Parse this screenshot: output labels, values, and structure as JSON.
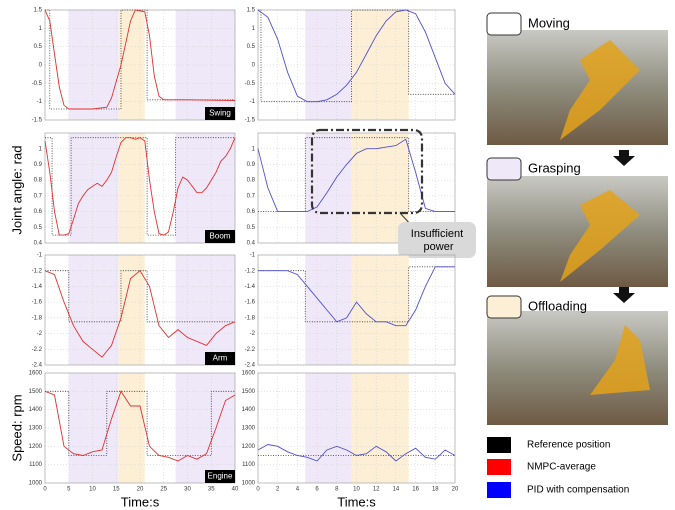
{
  "chart_data": [
    {
      "type": "line",
      "label": "Swing",
      "xlim": [
        0,
        40
      ],
      "ylim": [
        -1.5,
        1.5
      ],
      "xticks": [
        0,
        5,
        10,
        15,
        20,
        25,
        30,
        35,
        40
      ],
      "yticks": [
        -1.5,
        -1,
        -0.5,
        0,
        0.5,
        1,
        1.5
      ],
      "spans": [
        {
          "x0": 5,
          "x1": 15.5,
          "color": "#efe8f8"
        },
        {
          "x0": 15.5,
          "x1": 21,
          "color": "#fdefd6"
        },
        {
          "x0": 27.5,
          "x1": 40,
          "color": "#efe8f8"
        }
      ],
      "series": [
        {
          "color": "#333333",
          "dash": true,
          "x": [
            0,
            1,
            1,
            16,
            16,
            21.5,
            21.5,
            40
          ],
          "values": [
            1.5,
            1.5,
            -1.2,
            -1.2,
            1.5,
            1.5,
            -0.95,
            -0.95
          ]
        },
        {
          "color": "#e03030",
          "x": [
            0,
            1,
            2,
            3,
            4,
            5,
            10,
            13,
            14,
            16,
            18,
            19,
            21,
            22,
            23,
            24,
            25,
            30,
            40
          ],
          "values": [
            1.5,
            1.2,
            0.3,
            -0.6,
            -1.1,
            -1.2,
            -1.2,
            -1.15,
            -0.9,
            0,
            1.2,
            1.5,
            1.45,
            0.8,
            -0.3,
            -0.85,
            -0.95,
            -0.95,
            -0.97
          ]
        }
      ]
    },
    {
      "type": "line",
      "xlim": [
        0,
        20
      ],
      "ylim": [
        -1.5,
        1.5
      ],
      "xticks": [
        0,
        2,
        4,
        6,
        8,
        10,
        12,
        14,
        16,
        18,
        20
      ],
      "yticks": [
        -1.5,
        -1,
        -0.5,
        0,
        0.5,
        1,
        1.5
      ],
      "spans": [
        {
          "x0": 4.8,
          "x1": 9.5,
          "color": "#efe8f8"
        },
        {
          "x0": 9.5,
          "x1": 15.3,
          "color": "#fdefd6"
        }
      ],
      "series": [
        {
          "color": "#333333",
          "dash": true,
          "x": [
            0,
            0.3,
            0.3,
            9.5,
            9.5,
            15.3,
            15.3,
            20
          ],
          "values": [
            1.5,
            1.5,
            -1,
            -1,
            1.5,
            1.5,
            -0.8,
            -0.8
          ]
        },
        {
          "color": "#5050d0",
          "x": [
            0,
            1,
            2,
            3,
            4,
            5,
            6,
            7,
            8,
            9,
            10,
            11,
            12,
            13,
            14,
            15,
            16,
            17,
            18,
            19,
            20
          ],
          "values": [
            1.5,
            1.3,
            0.7,
            -0.2,
            -0.85,
            -1,
            -1,
            -0.95,
            -0.8,
            -0.55,
            -0.2,
            0.3,
            0.8,
            1.2,
            1.45,
            1.5,
            1.4,
            0.9,
            0.2,
            -0.5,
            -0.8
          ]
        }
      ]
    },
    {
      "type": "line",
      "label": "Boom",
      "xlim": [
        0,
        40
      ],
      "ylim": [
        0.4,
        1.1
      ],
      "xticks": [
        0,
        5,
        10,
        15,
        20,
        25,
        30,
        35,
        40
      ],
      "yticks": [
        0.4,
        0.5,
        0.6,
        0.7,
        0.8,
        0.9,
        1
      ],
      "spans": [
        {
          "x0": 5,
          "x1": 15.5,
          "color": "#efe8f8"
        },
        {
          "x0": 15.5,
          "x1": 21,
          "color": "#fdefd6"
        },
        {
          "x0": 27.5,
          "x1": 40,
          "color": "#efe8f8"
        }
      ],
      "series": [
        {
          "color": "#333333",
          "dash": true,
          "x": [
            0,
            1.5,
            1.5,
            5.5,
            5.5,
            21.5,
            21.5,
            27.5,
            27.5,
            40
          ],
          "values": [
            1.07,
            1.07,
            0.45,
            0.45,
            1.07,
            1.07,
            0.45,
            0.45,
            1.07,
            1.07
          ]
        },
        {
          "color": "#e03030",
          "x": [
            0,
            1,
            2,
            3,
            4,
            5,
            6,
            7,
            8,
            9,
            10,
            11,
            12,
            13,
            14,
            15,
            16,
            17,
            18,
            19,
            20,
            21,
            22,
            23,
            24,
            25,
            26,
            27,
            28,
            29,
            30,
            31,
            32,
            33,
            34,
            35,
            36,
            37,
            38,
            39,
            40
          ],
          "values": [
            1.05,
            0.85,
            0.6,
            0.45,
            0.45,
            0.46,
            0.55,
            0.65,
            0.7,
            0.74,
            0.76,
            0.78,
            0.76,
            0.8,
            0.85,
            0.95,
            1.04,
            1.07,
            1.07,
            1.06,
            1.07,
            1.05,
            0.8,
            0.6,
            0.46,
            0.45,
            0.47,
            0.6,
            0.75,
            0.82,
            0.8,
            0.76,
            0.72,
            0.72,
            0.75,
            0.8,
            0.85,
            0.92,
            0.95,
            1.0,
            1.07
          ]
        }
      ]
    },
    {
      "type": "line",
      "annotation": "Insufficient power",
      "xlim": [
        0,
        20
      ],
      "ylim": [
        0.4,
        1.1
      ],
      "xticks": [
        0,
        2,
        4,
        6,
        8,
        10,
        12,
        14,
        16,
        18,
        20
      ],
      "yticks": [
        0.4,
        0.5,
        0.6,
        0.7,
        0.8,
        0.9,
        1
      ],
      "spans": [
        {
          "x0": 4.8,
          "x1": 9.5,
          "color": "#efe8f8"
        },
        {
          "x0": 9.5,
          "x1": 15.3,
          "color": "#fdefd6"
        }
      ],
      "series": [
        {
          "color": "#333333",
          "dash": true,
          "x": [
            0,
            4.8,
            4.8,
            15.3,
            15.3,
            20
          ],
          "values": [
            0.6,
            0.6,
            1.07,
            1.07,
            0.6,
            0.6
          ]
        },
        {
          "color": "#5050d0",
          "x": [
            0,
            1,
            2,
            3,
            4,
            5,
            6,
            7,
            8,
            9,
            10,
            11,
            12,
            13,
            14,
            15,
            16,
            17,
            18,
            19,
            20
          ],
          "values": [
            1.0,
            0.75,
            0.6,
            0.6,
            0.6,
            0.6,
            0.63,
            0.72,
            0.82,
            0.9,
            0.97,
            1.0,
            1.0,
            1.01,
            1.02,
            1.06,
            0.85,
            0.62,
            0.6,
            0.6,
            0.6
          ]
        }
      ]
    },
    {
      "type": "line",
      "label": "Arm",
      "xlim": [
        0,
        40
      ],
      "ylim": [
        -2.4,
        -1
      ],
      "xticks": [
        0,
        5,
        10,
        15,
        20,
        25,
        30,
        35,
        40
      ],
      "yticks": [
        -2.4,
        -2.2,
        -2,
        -1.8,
        -1.6,
        -1.4,
        -1.2,
        -1
      ],
      "spans": [
        {
          "x0": 5,
          "x1": 15.5,
          "color": "#efe8f8"
        },
        {
          "x0": 15.5,
          "x1": 21,
          "color": "#fdefd6"
        },
        {
          "x0": 27.5,
          "x1": 40,
          "color": "#efe8f8"
        }
      ],
      "series": [
        {
          "color": "#333333",
          "dash": true,
          "x": [
            0,
            5,
            5,
            16,
            16,
            21.5,
            21.5,
            40
          ],
          "values": [
            -1.2,
            -1.2,
            -1.85,
            -1.85,
            -1.2,
            -1.2,
            -1.85,
            -1.85
          ]
        },
        {
          "color": "#e03030",
          "x": [
            0,
            2,
            4,
            6,
            8,
            10,
            12,
            14,
            16,
            18,
            20,
            22,
            24,
            26,
            28,
            30,
            32,
            34,
            36,
            38,
            40
          ],
          "values": [
            -1.2,
            -1.25,
            -1.6,
            -1.9,
            -2.1,
            -2.2,
            -2.3,
            -2.15,
            -1.8,
            -1.3,
            -1.2,
            -1.4,
            -1.9,
            -2.05,
            -1.95,
            -2.05,
            -2.1,
            -2.15,
            -2.0,
            -1.9,
            -1.85
          ]
        }
      ]
    },
    {
      "type": "line",
      "xlim": [
        0,
        20
      ],
      "ylim": [
        -2.4,
        -1
      ],
      "xticks": [
        0,
        2,
        4,
        6,
        8,
        10,
        12,
        14,
        16,
        18,
        20
      ],
      "yticks": [
        -2.4,
        -2.2,
        -2,
        -1.8,
        -1.6,
        -1.4,
        -1.2,
        -1
      ],
      "spans": [
        {
          "x0": 4.8,
          "x1": 9.5,
          "color": "#efe8f8"
        },
        {
          "x0": 9.5,
          "x1": 15.3,
          "color": "#fdefd6"
        }
      ],
      "series": [
        {
          "color": "#333333",
          "dash": true,
          "x": [
            0,
            4.8,
            4.8,
            15.3,
            15.3,
            20
          ],
          "values": [
            -1.2,
            -1.2,
            -1.85,
            -1.85,
            -1.15,
            -1.15
          ]
        },
        {
          "color": "#5050d0",
          "x": [
            0,
            1,
            2,
            3,
            4,
            5,
            6,
            7,
            8,
            9,
            10,
            11,
            12,
            13,
            14,
            15,
            16,
            17,
            18,
            19,
            20
          ],
          "values": [
            -1.2,
            -1.2,
            -1.2,
            -1.2,
            -1.25,
            -1.4,
            -1.55,
            -1.7,
            -1.85,
            -1.8,
            -1.6,
            -1.75,
            -1.85,
            -1.85,
            -1.9,
            -1.9,
            -1.7,
            -1.4,
            -1.15,
            -1.15,
            -1.15
          ]
        }
      ]
    },
    {
      "type": "line",
      "label": "Engine",
      "xlabel": "Time:s",
      "xlim": [
        0,
        40
      ],
      "ylim": [
        1000,
        1600
      ],
      "xticks": [
        0,
        5,
        10,
        15,
        20,
        25,
        30,
        35,
        40
      ],
      "yticks": [
        1000,
        1100,
        1200,
        1300,
        1400,
        1500,
        1600
      ],
      "spans": [
        {
          "x0": 5,
          "x1": 15.5,
          "color": "#efe8f8"
        },
        {
          "x0": 15.5,
          "x1": 21,
          "color": "#fdefd6"
        },
        {
          "x0": 27.5,
          "x1": 40,
          "color": "#efe8f8"
        }
      ],
      "series": [
        {
          "color": "#333333",
          "dash": true,
          "x": [
            0,
            5,
            5,
            13,
            13,
            21.5,
            21.5,
            35,
            35,
            40
          ],
          "values": [
            1500,
            1500,
            1150,
            1150,
            1500,
            1500,
            1150,
            1150,
            1500,
            1500
          ]
        },
        {
          "color": "#e03030",
          "x": [
            0,
            2,
            4,
            6,
            8,
            10,
            12,
            14,
            16,
            18,
            20,
            22,
            24,
            26,
            28,
            30,
            32,
            34,
            36,
            38,
            40
          ],
          "values": [
            1500,
            1480,
            1200,
            1160,
            1150,
            1170,
            1180,
            1350,
            1500,
            1420,
            1420,
            1200,
            1150,
            1140,
            1120,
            1150,
            1130,
            1160,
            1300,
            1450,
            1480
          ]
        }
      ]
    },
    {
      "type": "line",
      "xlabel": "Time:s",
      "xlim": [
        0,
        20
      ],
      "ylim": [
        1000,
        1600
      ],
      "xticks": [
        0,
        2,
        4,
        6,
        8,
        10,
        12,
        14,
        16,
        18,
        20
      ],
      "yticks": [
        1000,
        1100,
        1200,
        1300,
        1400,
        1500,
        1600
      ],
      "spans": [
        {
          "x0": 4.8,
          "x1": 9.5,
          "color": "#efe8f8"
        },
        {
          "x0": 9.5,
          "x1": 15.3,
          "color": "#fdefd6"
        }
      ],
      "series": [
        {
          "color": "#333333",
          "dash": true,
          "x": [
            0,
            20
          ],
          "values": [
            1150,
            1150
          ]
        },
        {
          "color": "#5050d0",
          "x": [
            0,
            1,
            2,
            3,
            4,
            5,
            6,
            7,
            8,
            9,
            10,
            11,
            12,
            13,
            14,
            15,
            16,
            17,
            18,
            19,
            20
          ],
          "values": [
            1180,
            1210,
            1200,
            1170,
            1150,
            1140,
            1120,
            1180,
            1200,
            1180,
            1150,
            1160,
            1200,
            1170,
            1120,
            1160,
            1190,
            1140,
            1130,
            1180,
            1150
          ]
        }
      ]
    }
  ],
  "y_axis_labels": [
    "Joint angle: rad",
    "Speed: rpm"
  ],
  "stages": [
    {
      "name": "Moving",
      "color": "#ffffff"
    },
    {
      "name": "Grasping",
      "color": "#efe8f8"
    },
    {
      "name": "Offloading",
      "color": "#fdefd6"
    }
  ],
  "legend": [
    {
      "name": "Reference position",
      "color": "#000000"
    },
    {
      "name": "NMPC-average",
      "color": "#ff0000"
    },
    {
      "name": "PID with compensation",
      "color": "#0000ff"
    }
  ]
}
